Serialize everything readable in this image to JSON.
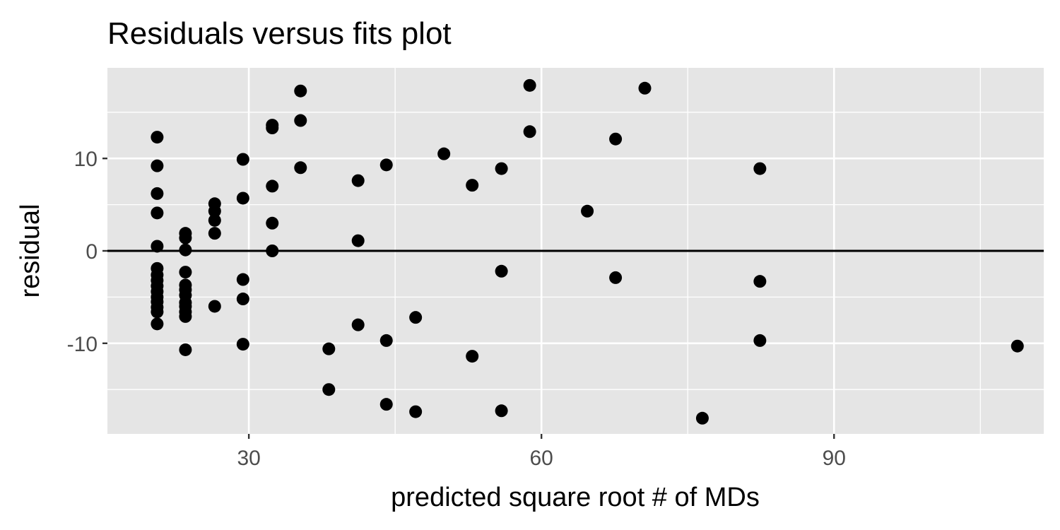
{
  "chart_data": {
    "type": "scatter",
    "title": "Residuals versus fits plot",
    "xlabel": "predicted square root # of MDs",
    "ylabel": "residual",
    "xlim": [
      15.5,
      111.5
    ],
    "ylim": [
      -19.8,
      19.8
    ],
    "x_ticks": [
      30,
      60,
      90
    ],
    "y_ticks": [
      -10,
      0,
      10
    ],
    "x_tick_labels": [
      "30",
      "60",
      "90"
    ],
    "y_tick_labels": [
      "-10",
      "0",
      "10"
    ],
    "x_minor_gridlines": [
      45,
      75,
      105
    ],
    "y_minor_gridlines": [
      -15,
      -5,
      5,
      15
    ],
    "grid": true,
    "legend": "none",
    "reference_line": {
      "y": 0
    },
    "colors": {
      "panel_background": "#e5e5e5",
      "gridline": "#ffffff",
      "point": "#000000",
      "reference_line": "#000000",
      "tick_label": "#4d4d4d",
      "tick_mark": "#333333"
    },
    "points": [
      {
        "x": 20.6,
        "y": 12.3
      },
      {
        "x": 20.6,
        "y": 9.2
      },
      {
        "x": 20.6,
        "y": 6.2
      },
      {
        "x": 20.6,
        "y": 4.1
      },
      {
        "x": 20.6,
        "y": 0.5
      },
      {
        "x": 20.6,
        "y": -1.9
      },
      {
        "x": 20.6,
        "y": -2.6
      },
      {
        "x": 20.6,
        "y": -3.2
      },
      {
        "x": 20.6,
        "y": -3.8
      },
      {
        "x": 20.6,
        "y": -4.4
      },
      {
        "x": 20.6,
        "y": -5.0
      },
      {
        "x": 20.6,
        "y": -5.5
      },
      {
        "x": 20.6,
        "y": -6.1
      },
      {
        "x": 20.6,
        "y": -6.6
      },
      {
        "x": 20.6,
        "y": -7.9
      },
      {
        "x": 23.5,
        "y": 1.9
      },
      {
        "x": 23.5,
        "y": 1.4
      },
      {
        "x": 23.5,
        "y": 0.1
      },
      {
        "x": 23.5,
        "y": -2.3
      },
      {
        "x": 23.5,
        "y": -3.7
      },
      {
        "x": 23.5,
        "y": -4.2
      },
      {
        "x": 23.5,
        "y": -4.8
      },
      {
        "x": 23.5,
        "y": -5.6
      },
      {
        "x": 23.5,
        "y": -6.0
      },
      {
        "x": 23.5,
        "y": -6.6
      },
      {
        "x": 23.5,
        "y": -7.1
      },
      {
        "x": 23.5,
        "y": -10.7
      },
      {
        "x": 26.5,
        "y": 5.1
      },
      {
        "x": 26.5,
        "y": 4.3
      },
      {
        "x": 26.5,
        "y": 3.3
      },
      {
        "x": 26.5,
        "y": 1.9
      },
      {
        "x": 26.5,
        "y": -6.0
      },
      {
        "x": 29.4,
        "y": 9.9
      },
      {
        "x": 29.4,
        "y": 5.7
      },
      {
        "x": 29.4,
        "y": -3.1
      },
      {
        "x": 29.4,
        "y": -5.2
      },
      {
        "x": 29.4,
        "y": -10.1
      },
      {
        "x": 32.4,
        "y": 13.6
      },
      {
        "x": 32.4,
        "y": 13.3
      },
      {
        "x": 32.4,
        "y": 7.0
      },
      {
        "x": 32.4,
        "y": 3.0
      },
      {
        "x": 32.4,
        "y": 0.0
      },
      {
        "x": 35.3,
        "y": 17.3
      },
      {
        "x": 35.3,
        "y": 14.1
      },
      {
        "x": 35.3,
        "y": 9.0
      },
      {
        "x": 38.2,
        "y": -10.6
      },
      {
        "x": 38.2,
        "y": -15.0
      },
      {
        "x": 41.2,
        "y": 7.6
      },
      {
        "x": 41.2,
        "y": 1.1
      },
      {
        "x": 41.2,
        "y": -8.0
      },
      {
        "x": 44.1,
        "y": 9.3
      },
      {
        "x": 44.1,
        "y": -9.7
      },
      {
        "x": 44.1,
        "y": -16.6
      },
      {
        "x": 47.1,
        "y": -7.2
      },
      {
        "x": 47.1,
        "y": -17.4
      },
      {
        "x": 50.0,
        "y": 10.5
      },
      {
        "x": 52.9,
        "y": 7.1
      },
      {
        "x": 52.9,
        "y": -11.4
      },
      {
        "x": 55.9,
        "y": 8.9
      },
      {
        "x": 55.9,
        "y": -2.2
      },
      {
        "x": 55.9,
        "y": -17.3
      },
      {
        "x": 58.8,
        "y": 17.9
      },
      {
        "x": 58.8,
        "y": 12.9
      },
      {
        "x": 64.7,
        "y": 4.3
      },
      {
        "x": 67.6,
        "y": 12.1
      },
      {
        "x": 67.6,
        "y": -2.9
      },
      {
        "x": 70.6,
        "y": 17.6
      },
      {
        "x": 76.5,
        "y": -18.1
      },
      {
        "x": 82.4,
        "y": 8.9
      },
      {
        "x": 82.4,
        "y": -3.3
      },
      {
        "x": 82.4,
        "y": -9.7
      },
      {
        "x": 108.8,
        "y": -10.3
      }
    ]
  }
}
